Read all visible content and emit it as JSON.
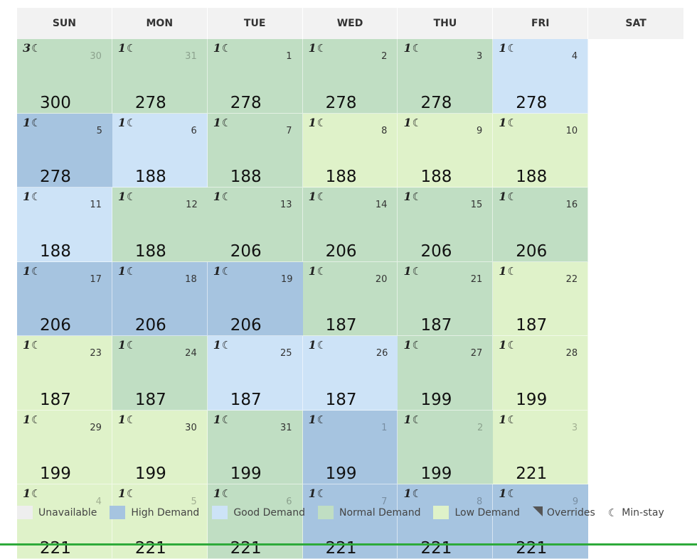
{
  "weekdays": [
    "SUN",
    "MON",
    "TUE",
    "WED",
    "THU",
    "FRI",
    "SAT"
  ],
  "colors": {
    "unavailable": "#eeeeee",
    "high": "#a6c4e0",
    "good": "#cde3f7",
    "normal": "#c0dec3",
    "low": "#dff2c9",
    "accent_line": "#2eaa3a"
  },
  "cells": [
    {
      "min_stay": "3",
      "day": "30",
      "price": "300",
      "demand": "normal",
      "other_month": true
    },
    {
      "min_stay": "1",
      "day": "31",
      "price": "278",
      "demand": "normal",
      "other_month": true
    },
    {
      "min_stay": "1",
      "day": "1",
      "price": "278",
      "demand": "normal",
      "other_month": false
    },
    {
      "min_stay": "1",
      "day": "2",
      "price": "278",
      "demand": "normal",
      "other_month": false
    },
    {
      "min_stay": "1",
      "day": "3",
      "price": "278",
      "demand": "normal",
      "other_month": false
    },
    {
      "min_stay": "1",
      "day": "4",
      "price": "278",
      "demand": "good",
      "other_month": false
    },
    {
      "min_stay": "1",
      "day": "5",
      "price": "278",
      "demand": "high",
      "other_month": false
    },
    {
      "min_stay": "1",
      "day": "6",
      "price": "188",
      "demand": "good",
      "other_month": false
    },
    {
      "min_stay": "1",
      "day": "7",
      "price": "188",
      "demand": "normal",
      "other_month": false
    },
    {
      "min_stay": "1",
      "day": "8",
      "price": "188",
      "demand": "low",
      "other_month": false
    },
    {
      "min_stay": "1",
      "day": "9",
      "price": "188",
      "demand": "low",
      "other_month": false
    },
    {
      "min_stay": "1",
      "day": "10",
      "price": "188",
      "demand": "low",
      "other_month": false
    },
    {
      "min_stay": "1",
      "day": "11",
      "price": "188",
      "demand": "good",
      "other_month": false
    },
    {
      "min_stay": "1",
      "day": "12",
      "price": "188",
      "demand": "normal",
      "other_month": false
    },
    {
      "min_stay": "1",
      "day": "13",
      "price": "206",
      "demand": "normal",
      "other_month": false
    },
    {
      "min_stay": "1",
      "day": "14",
      "price": "206",
      "demand": "normal",
      "other_month": false
    },
    {
      "min_stay": "1",
      "day": "15",
      "price": "206",
      "demand": "normal",
      "other_month": false
    },
    {
      "min_stay": "1",
      "day": "16",
      "price": "206",
      "demand": "normal",
      "other_month": false
    },
    {
      "min_stay": "1",
      "day": "17",
      "price": "206",
      "demand": "high",
      "other_month": false
    },
    {
      "min_stay": "1",
      "day": "18",
      "price": "206",
      "demand": "high",
      "other_month": false
    },
    {
      "min_stay": "1",
      "day": "19",
      "price": "206",
      "demand": "high",
      "other_month": false
    },
    {
      "min_stay": "1",
      "day": "20",
      "price": "187",
      "demand": "normal",
      "other_month": false
    },
    {
      "min_stay": "1",
      "day": "21",
      "price": "187",
      "demand": "normal",
      "other_month": false
    },
    {
      "min_stay": "1",
      "day": "22",
      "price": "187",
      "demand": "low",
      "other_month": false
    },
    {
      "min_stay": "1",
      "day": "23",
      "price": "187",
      "demand": "low",
      "other_month": false
    },
    {
      "min_stay": "1",
      "day": "24",
      "price": "187",
      "demand": "normal",
      "other_month": false
    },
    {
      "min_stay": "1",
      "day": "25",
      "price": "187",
      "demand": "good",
      "other_month": false
    },
    {
      "min_stay": "1",
      "day": "26",
      "price": "187",
      "demand": "good",
      "other_month": false
    },
    {
      "min_stay": "1",
      "day": "27",
      "price": "199",
      "demand": "normal",
      "other_month": false
    },
    {
      "min_stay": "1",
      "day": "28",
      "price": "199",
      "demand": "low",
      "other_month": false
    },
    {
      "min_stay": "1",
      "day": "29",
      "price": "199",
      "demand": "low",
      "other_month": false
    },
    {
      "min_stay": "1",
      "day": "30",
      "price": "199",
      "demand": "low",
      "other_month": false
    },
    {
      "min_stay": "1",
      "day": "31",
      "price": "199",
      "demand": "normal",
      "other_month": false
    },
    {
      "min_stay": "1",
      "day": "1",
      "price": "199",
      "demand": "high",
      "other_month": true
    },
    {
      "min_stay": "1",
      "day": "2",
      "price": "199",
      "demand": "normal",
      "other_month": true
    },
    {
      "min_stay": "1",
      "day": "3",
      "price": "221",
      "demand": "low",
      "other_month": true
    },
    {
      "min_stay": "1",
      "day": "4",
      "price": "221",
      "demand": "low",
      "other_month": true
    },
    {
      "min_stay": "1",
      "day": "5",
      "price": "221",
      "demand": "low",
      "other_month": true
    },
    {
      "min_stay": "1",
      "day": "6",
      "price": "221",
      "demand": "normal",
      "other_month": true
    },
    {
      "min_stay": "1",
      "day": "7",
      "price": "221",
      "demand": "high",
      "other_month": true
    },
    {
      "min_stay": "1",
      "day": "8",
      "price": "221",
      "demand": "high",
      "other_month": true
    },
    {
      "min_stay": "1",
      "day": "9",
      "price": "221",
      "demand": "high",
      "other_month": true
    }
  ],
  "legend": {
    "unavailable": "Unavailable",
    "high": "High Demand",
    "good": "Good Demand",
    "normal": "Normal Demand",
    "low": "Low Demand",
    "overrides": "Overrides",
    "min_stay": "Min-stay"
  },
  "icons": {
    "moon": "☾",
    "overrides": "corner-triangle-icon"
  }
}
